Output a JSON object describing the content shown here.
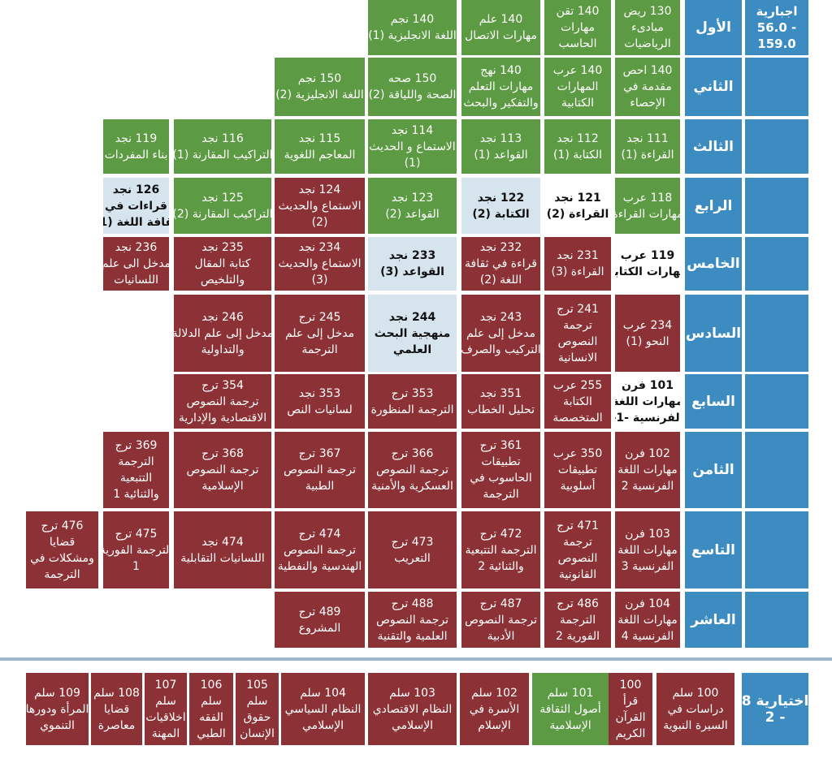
{
  "header": {
    "line1": "اجبارية",
    "line2": "- 56.0",
    "line3": "159.0"
  },
  "levels": [
    {
      "name": "الأول",
      "courses": [
        {
          "code": "130 ريض",
          "lines": [
            "مبادىء",
            "الرياضيات"
          ],
          "style": "g"
        },
        {
          "code": "140 تقن",
          "lines": [
            "مهارات",
            "الحاسب"
          ],
          "style": "g"
        },
        {
          "code": "140 علم",
          "lines": [
            "مهارات الاتصال"
          ],
          "style": "g"
        },
        {
          "code": "140 نجم",
          "lines": [
            "اللغة الانجليزية (1)"
          ],
          "style": "g"
        }
      ]
    },
    {
      "name": "الثاني",
      "courses": [
        {
          "code": "140 احص",
          "lines": [
            "مقدمة في",
            "الإحصاء"
          ],
          "style": "g"
        },
        {
          "code": "140 عرب",
          "lines": [
            "المهارات",
            "الكتابية"
          ],
          "style": "g"
        },
        {
          "code": "140 نهج",
          "lines": [
            "مهارات التعلم",
            "والتفكير والبحث"
          ],
          "style": "g"
        },
        {
          "code": "150 صحه",
          "lines": [
            "الصحة واللياقة (2)"
          ],
          "style": "g"
        },
        {
          "code": "150 نجم",
          "lines": [
            "اللغة الانجليزية (2)"
          ],
          "style": "g"
        }
      ]
    },
    {
      "name": "الثالث",
      "courses": [
        {
          "code": "111 نجد",
          "lines": [
            "القراءة (1)"
          ],
          "style": "g"
        },
        {
          "code": "112 نجد",
          "lines": [
            "الكتابة (1)"
          ],
          "style": "g"
        },
        {
          "code": "113 نجد",
          "lines": [
            "القواعد (1)"
          ],
          "style": "g"
        },
        {
          "code": "114 نجد",
          "lines": [
            "الاستماع و الحديث",
            "(1)"
          ],
          "style": "g"
        },
        {
          "code": "115 نجد",
          "lines": [
            "المعاجم اللغوية"
          ],
          "style": "g"
        },
        {
          "code": "116 نجد",
          "lines": [
            "التراكيب المقارنة (1)"
          ],
          "style": "g"
        },
        {
          "code": "119 نجد",
          "lines": [
            "بناء المفردات"
          ],
          "style": "g"
        }
      ]
    },
    {
      "name": "الرابع",
      "courses": [
        {
          "code": "118 عرب",
          "lines": [
            "مهارات القراءة"
          ],
          "style": "g"
        },
        {
          "code": "121 نجد",
          "lines": [
            "القراءة (2)"
          ],
          "style": "w"
        },
        {
          "code": "122 نجد",
          "lines": [
            "الكتابة (2)"
          ],
          "style": "l"
        },
        {
          "code": "123 نجد",
          "lines": [
            "القواعد (2)"
          ],
          "style": "g"
        },
        {
          "code": "124 نجد",
          "lines": [
            "الاستماع والحديث",
            "(2)"
          ],
          "style": "r"
        },
        {
          "code": "125 نجد",
          "lines": [
            "التراكيب المقارنة (2)"
          ],
          "style": "g"
        },
        {
          "code": "126 نجد",
          "lines": [
            "قراءات في",
            "ثقافة اللغة (1)"
          ],
          "style": "l"
        }
      ]
    },
    {
      "name": "الخامس",
      "courses": [
        {
          "code": "119 عرب",
          "lines": [
            "مهارات الكتابة"
          ],
          "style": "w"
        },
        {
          "code": "231 نجد",
          "lines": [
            "القراءة (3)"
          ],
          "style": "r"
        },
        {
          "code": "232 نجد",
          "lines": [
            "قراءة في ثقافة",
            "اللغة (2)"
          ],
          "style": "r"
        },
        {
          "code": "233 نجد",
          "lines": [
            "القواعد (3)"
          ],
          "style": "l"
        },
        {
          "code": "234 نجد",
          "lines": [
            "الاستماع والحديث",
            "(3)"
          ],
          "style": "r"
        },
        {
          "code": "235 نجد",
          "lines": [
            "كتابة المقال",
            "والتلخيص"
          ],
          "style": "r"
        },
        {
          "code": "236 نجد",
          "lines": [
            "مدخل الى علم",
            "اللسانيات"
          ],
          "style": "r"
        }
      ]
    },
    {
      "name": "السادس",
      "courses": [
        {
          "code": "234 عرب",
          "lines": [
            "النحو (1)"
          ],
          "style": "r"
        },
        {
          "code": "241 ترج",
          "lines": [
            "ترجمة",
            "النصوص",
            "الانسانية"
          ],
          "style": "r"
        },
        {
          "code": "243 نجد",
          "lines": [
            "مدخل إلى علم",
            "التركيب والصرف"
          ],
          "style": "r"
        },
        {
          "code": "244 نجد",
          "lines": [
            "منهجية البحث",
            "العلمي"
          ],
          "style": "l"
        },
        {
          "code": "245 ترج",
          "lines": [
            "مدخل إلى علم",
            "الترجمة"
          ],
          "style": "r"
        },
        {
          "code": "246 نجد",
          "lines": [
            "مدخل إلى علم الدلالة",
            "والتداولية"
          ],
          "style": "r"
        }
      ]
    },
    {
      "name": "السابع",
      "courses": [
        {
          "code": "101 فرن",
          "lines": [
            "مهارات اللغة",
            "الفرنسية -1-"
          ],
          "style": "w"
        },
        {
          "code": "255 عرب",
          "lines": [
            "الكتابة",
            "المتخصصة"
          ],
          "style": "r"
        },
        {
          "code": "351 نجد",
          "lines": [
            "تحليل الخطاب"
          ],
          "style": "r"
        },
        {
          "code": "353 ترج",
          "lines": [
            "الترجمة المنظورة"
          ],
          "style": "r"
        },
        {
          "code": "353 نجد",
          "lines": [
            "لسانيات النص"
          ],
          "style": "r"
        },
        {
          "code": "354 ترج",
          "lines": [
            "ترجمة النصوص",
            "الاقتصادية والإدارية"
          ],
          "style": "r"
        }
      ]
    },
    {
      "name": "الثامن",
      "courses": [
        {
          "code": "102 فرن",
          "lines": [
            "مهارات اللغة",
            "الفرنسية 2"
          ],
          "style": "r"
        },
        {
          "code": "350 عرب",
          "lines": [
            "تطبيقات",
            "أسلوبية"
          ],
          "style": "r"
        },
        {
          "code": "361 ترج",
          "lines": [
            "تطبيقات",
            "الحاسوب في",
            "الترجمة"
          ],
          "style": "r"
        },
        {
          "code": "366 ترج",
          "lines": [
            "ترجمة النصوص",
            "العسكرية والأمنية"
          ],
          "style": "r"
        },
        {
          "code": "367 ترج",
          "lines": [
            "ترجمة النصوص",
            "الطبية"
          ],
          "style": "r"
        },
        {
          "code": "368 ترج",
          "lines": [
            "ترجمة النصوص",
            "الإسلامية"
          ],
          "style": "r"
        },
        {
          "code": "369 ترج",
          "lines": [
            "الترجمة",
            "التتبعية",
            "والثنائية 1"
          ],
          "style": "r"
        }
      ]
    },
    {
      "name": "التاسع",
      "courses": [
        {
          "code": "103 فرن",
          "lines": [
            "مهارات اللغة",
            "الفرنسية 3"
          ],
          "style": "r"
        },
        {
          "code": "471 ترج",
          "lines": [
            "ترجمة",
            "النصوص",
            "القانونية"
          ],
          "style": "r"
        },
        {
          "code": "472 ترج",
          "lines": [
            "الترجمة التتبعية",
            "والثنائية 2"
          ],
          "style": "r"
        },
        {
          "code": "473 ترج",
          "lines": [
            "التعريب"
          ],
          "style": "r"
        },
        {
          "code": "474 ترج",
          "lines": [
            "ترجمة النصوص",
            "الهندسية والنفطية"
          ],
          "style": "r"
        },
        {
          "code": "474 نجد",
          "lines": [
            "اللسانيات التقابلية"
          ],
          "style": "r"
        },
        {
          "code": "475 ترج",
          "lines": [
            "الترجمة الفورية",
            "1"
          ],
          "style": "r"
        },
        {
          "code": "476 ترج",
          "lines": [
            "قضايا",
            "ومشكلات في",
            "الترجمة"
          ],
          "style": "r"
        }
      ]
    },
    {
      "name": "العاشر",
      "courses": [
        {
          "code": "104 فرن",
          "lines": [
            "مهارات اللغة",
            "الفرنسية 4"
          ],
          "style": "r"
        },
        {
          "code": "486 ترج",
          "lines": [
            "الترجمة",
            "الفورية 2"
          ],
          "style": "r"
        },
        {
          "code": "487 ترج",
          "lines": [
            "ترجمة النصوص",
            "الأدبية"
          ],
          "style": "r"
        },
        {
          "code": "488 ترج",
          "lines": [
            "ترجمة النصوص",
            "العلمية والتقنية"
          ],
          "style": "r"
        },
        {
          "code": "489 ترج",
          "lines": [
            "المشروع"
          ],
          "style": "r"
        }
      ]
    }
  ],
  "electives": {
    "label_lines": [
      "اختيارية 8",
      "- 2"
    ],
    "courses": [
      {
        "lines": [
          "100 سلم",
          "دراسات في",
          "السيرة النبوية"
        ],
        "style": "r"
      },
      {
        "lines": [
          "100",
          "قرأ",
          "القرآن",
          "الكريم"
        ],
        "style": "r"
      },
      {
        "lines": [
          "101 سلم",
          "أصول الثقافة",
          "الإسلامية"
        ],
        "style": "g"
      },
      {
        "lines": [
          "102 سلم",
          "الأسرة في",
          "الإسلام"
        ],
        "style": "r"
      },
      {
        "lines": [
          "103 سلم",
          "النظام الاقتصادي",
          "الإسلامي"
        ],
        "style": "r"
      },
      {
        "lines": [
          "104 سلم",
          "النظام السياسي",
          "الإسلامي"
        ],
        "style": "r"
      },
      {
        "lines": [
          "105",
          "سلم",
          "حقوق",
          "الإنسان"
        ],
        "style": "r"
      },
      {
        "lines": [
          "106",
          "سلم",
          "الفقه",
          "الطبي"
        ],
        "style": "r"
      },
      {
        "lines": [
          "107",
          "سلم",
          "اخلاقيات",
          "المهنة"
        ],
        "style": "r"
      },
      {
        "lines": [
          "108 سلم",
          "قضايا",
          "معاصرة"
        ],
        "style": "r"
      },
      {
        "lines": [
          "109 سلم",
          "المرأة ودورها",
          "التنموي"
        ],
        "style": "r"
      }
    ]
  }
}
